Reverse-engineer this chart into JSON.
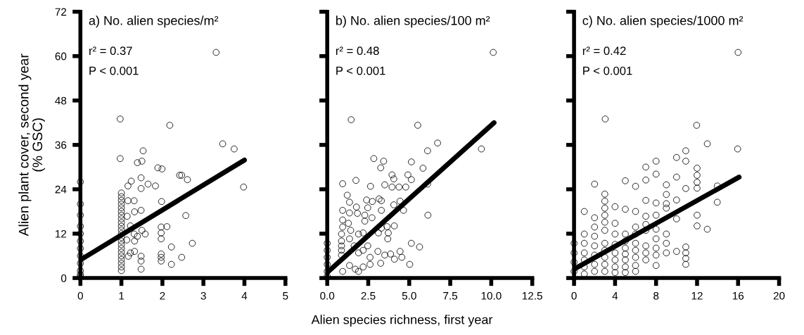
{
  "chart_data": [
    {
      "type": "scatter",
      "title": "a) No. alien species/m²",
      "ylabel": "Alien plant cover, second year\n(% GSC)",
      "annotations": [
        "r² = 0.37",
        "P < 0.001"
      ],
      "xlim": [
        0,
        5
      ],
      "xticks": [
        0,
        1,
        2,
        3,
        4,
        5
      ],
      "ylim": [
        0,
        72
      ],
      "yticks": [
        0,
        12,
        24,
        36,
        48,
        60,
        72
      ],
      "series": [
        {
          "type": "scatter",
          "marker": "circle",
          "color": "#000000",
          "x": [
            0,
            0,
            0,
            0,
            0,
            0,
            0,
            0,
            0,
            0,
            0,
            0,
            1,
            1,
            1,
            1,
            1,
            1,
            1,
            1,
            1,
            1,
            1,
            1,
            1,
            1,
            1,
            1,
            1,
            1,
            1,
            1,
            1,
            1,
            3.31,
            0.97,
            2.18,
            3.47,
            3.75,
            3.98,
            1.53,
            0.97,
            1.39,
            1.5,
            1.89,
            1.99,
            2.42,
            2.47,
            2.61,
            1.48,
            1.24,
            1.16,
            1.65,
            1.83,
            1.48,
            1.98,
            1.16,
            1.31,
            1.14,
            1.32,
            1.48,
            2.57,
            2.11,
            1.97,
            1.97,
            1.97,
            1.22,
            1.31,
            1.39,
            1.5,
            1.58,
            1.13,
            1.32,
            2.73,
            2.22,
            1.32,
            1.22,
            1.17,
            1.48,
            1.48,
            1.48,
            1.97,
            1.97,
            1.97,
            2.47,
            2.22
          ],
          "values": [
            26,
            20,
            17,
            14,
            12,
            10,
            8,
            6,
            4,
            2,
            1,
            0.5,
            23,
            22,
            21,
            20,
            19,
            18,
            17,
            16,
            15,
            14,
            13,
            12,
            11,
            10,
            9,
            8,
            7,
            6,
            5,
            4,
            3,
            2,
            61.0,
            43,
            41.3,
            36.3,
            34.9,
            24.6,
            34.4,
            32.3,
            31.2,
            31.6,
            29.8,
            29.5,
            27.8,
            27.8,
            26.6,
            27.1,
            26.2,
            24.9,
            25.4,
            24.9,
            24.2,
            20.7,
            20.9,
            20.9,
            16.7,
            17.9,
            18.3,
            16.9,
            13.9,
            13.8,
            12.2,
            10.6,
            14.1,
            11.9,
            11.3,
            12.9,
            11.9,
            10.3,
            10.0,
            9.4,
            8.4,
            7.2,
            6.8,
            5.9,
            5.9,
            4.6,
            2.4,
            6.5,
            5.6,
            4.6,
            5.6,
            3.7
          ]
        },
        {
          "type": "line",
          "marker": "none",
          "color": "#000000",
          "x": [
            0,
            4
          ],
          "values": [
            4.9,
            31.9
          ]
        }
      ]
    },
    {
      "type": "scatter",
      "title": "b) No. alien species/100 m²",
      "xlabel": "Alien species richness, first year",
      "annotations": [
        "r² = 0.48",
        "P < 0.001"
      ],
      "tick_labels": "x",
      "xlim": [
        0,
        12.5
      ],
      "xticks": [
        {
          "value": 0,
          "label": "0.0"
        },
        2.5,
        {
          "value": 5,
          "label": "5.0"
        },
        7.5,
        {
          "value": 10,
          "label": "10.0"
        },
        12.5
      ],
      "ylim": [
        0,
        72
      ],
      "yticks": [
        0,
        12,
        24,
        36,
        48,
        60,
        72
      ],
      "series": [
        {
          "type": "scatter",
          "marker": "circle",
          "color": "#000000",
          "x": [
            10.12,
            1.46,
            5.52,
            6.73,
            9.4,
            6.12,
            2.84,
            3.44,
            3.26,
            5.13,
            5.84,
            4.92,
            5.13,
            3.95,
            4.06,
            0.94,
            1.75,
            2.64,
            3.51,
            3.95,
            4.38,
            4.79,
            6.12,
            1.22,
            1.36,
            2.4,
            2.75,
            3.16,
            3.3,
            1.78,
            0.94,
            1.36,
            1.84,
            2.29,
            2.47,
            3.3,
            4.06,
            4.44,
            4.65,
            2.73,
            2.29,
            0.94,
            1.29,
            3.3,
            3.65,
            4.09,
            3.72,
            0.94,
            1.43,
            1.91,
            2.19,
            3.12,
            3.69,
            0.87,
            0.87,
            0.87,
            0.87,
            0.87,
            1.36,
            1.64,
            1.91,
            2.19,
            2.47,
            2.61,
            3.09,
            3.51,
            3.86,
            4.1,
            4.44,
            4.55,
            5.03,
            5.13,
            5.63,
            6.14,
            3.26,
            2.61,
            2.19,
            1.71,
            1.36,
            0.94,
            1.91,
            0,
            0,
            0,
            0,
            0,
            0
          ],
          "values": [
            61.0,
            42.8,
            41.3,
            36.5,
            34.9,
            34.4,
            32.3,
            31.6,
            29.8,
            31.4,
            29.7,
            27.9,
            26.6,
            27.9,
            26.8,
            25.5,
            26.4,
            24.8,
            25.2,
            24.6,
            24.6,
            24.6,
            25.4,
            22.4,
            20.5,
            21.1,
            20.7,
            21.4,
            20.9,
            19.2,
            18.3,
            17.6,
            17.5,
            17.0,
            19.0,
            18.3,
            19.8,
            20.8,
            18.3,
            16.3,
            15.4,
            15.7,
            14.8,
            13.5,
            13.9,
            14.1,
            12.2,
            13.8,
            12.9,
            11.9,
            12.2,
            12.2,
            10.6,
            11.9,
            10.0,
            8.7,
            7.5,
            6.2,
            10.6,
            8.7,
            6.8,
            7.5,
            8.7,
            5.6,
            7.2,
            6.2,
            6.5,
            5.1,
            7.2,
            5.6,
            3.7,
            9.4,
            8.4,
            17.0,
            4.0,
            3.7,
            3.0,
            2.4,
            3.4,
            1.8,
            1.8,
            9.4,
            7.5,
            5.6,
            3.7,
            1.8,
            0.5
          ]
        },
        {
          "type": "line",
          "marker": "none",
          "color": "#000000",
          "x": [
            0,
            10.17
          ],
          "values": [
            1.5,
            42.0
          ]
        }
      ]
    },
    {
      "type": "scatter",
      "title": "c) No. alien species/1000 m²",
      "annotations": [
        "r² = 0.42",
        "P < 0.001"
      ],
      "tick_labels": "x",
      "xlim": [
        0,
        20
      ],
      "xticks": [
        0,
        4,
        8,
        12,
        16,
        20
      ],
      "ylim": [
        0,
        72
      ],
      "yticks": [
        0,
        12,
        24,
        36,
        48,
        60,
        72
      ],
      "series": [
        {
          "type": "scatter",
          "marker": "circle",
          "color": "#000000",
          "x": [
            16,
            3.04,
            11.96,
            13,
            15.96,
            10.9,
            10.9,
            10,
            8,
            8,
            7,
            7,
            12,
            12,
            12,
            12,
            10,
            2,
            5,
            6,
            9,
            9,
            9,
            9,
            10.9,
            13.97,
            13.97,
            7,
            8,
            10,
            3,
            3,
            3,
            3,
            3,
            3,
            3,
            3,
            3,
            3,
            3,
            4,
            4,
            4,
            4,
            4,
            4,
            4,
            4,
            5,
            5,
            5,
            5,
            5,
            5,
            5,
            5,
            6,
            6,
            6,
            6,
            6,
            6,
            6,
            6,
            7,
            7,
            7,
            7,
            7,
            7,
            8,
            8,
            8,
            8,
            8,
            8,
            10,
            10,
            9,
            9,
            9,
            10.9,
            10.9,
            10.9,
            10.9,
            12,
            12,
            13,
            1,
            1,
            1,
            1,
            1,
            1,
            1,
            2,
            2,
            2,
            2,
            2,
            2,
            2,
            0,
            0,
            0,
            0
          ],
          "values": [
            61.0,
            43.0,
            41.3,
            36.3,
            34.9,
            34.4,
            31.6,
            32.6,
            31.6,
            28.1,
            30.0,
            26.5,
            29.7,
            27.8,
            25.9,
            24.3,
            27.3,
            25.4,
            26.3,
            24.8,
            25.2,
            22.6,
            20.1,
            18.9,
            24.2,
            24.9,
            20.5,
            21.0,
            20.3,
            21.1,
            22.7,
            20.8,
            18.9,
            17.0,
            15.1,
            12.9,
            9.4,
            7.5,
            5.6,
            3.7,
            1.8,
            19.3,
            14.8,
            11.9,
            9.1,
            6.8,
            4.9,
            3.0,
            1.5,
            18.6,
            11.9,
            10.0,
            8.1,
            6.5,
            4.9,
            3.0,
            1.5,
            18.0,
            13.8,
            11.9,
            9.4,
            7.5,
            5.6,
            3.4,
            1.8,
            16.7,
            14.5,
            12.9,
            8.7,
            6.8,
            4.9,
            17.0,
            13.2,
            10.6,
            8.1,
            6.2,
            3.4,
            16.0,
            7.2,
            11.9,
            9.4,
            6.8,
            8.4,
            6.8,
            5.3,
            3.7,
            17.0,
            14.1,
            13.2,
            18.0,
            11.9,
            9.4,
            6.8,
            4.9,
            3.0,
            1.1,
            16.3,
            13.8,
            11.3,
            8.7,
            6.2,
            3.7,
            1.8,
            9.4,
            6.8,
            4.3,
            1.8
          ]
        },
        {
          "type": "line",
          "marker": "none",
          "color": "#000000",
          "x": [
            0,
            16.1
          ],
          "values": [
            2.4,
            27.3
          ]
        }
      ]
    }
  ]
}
